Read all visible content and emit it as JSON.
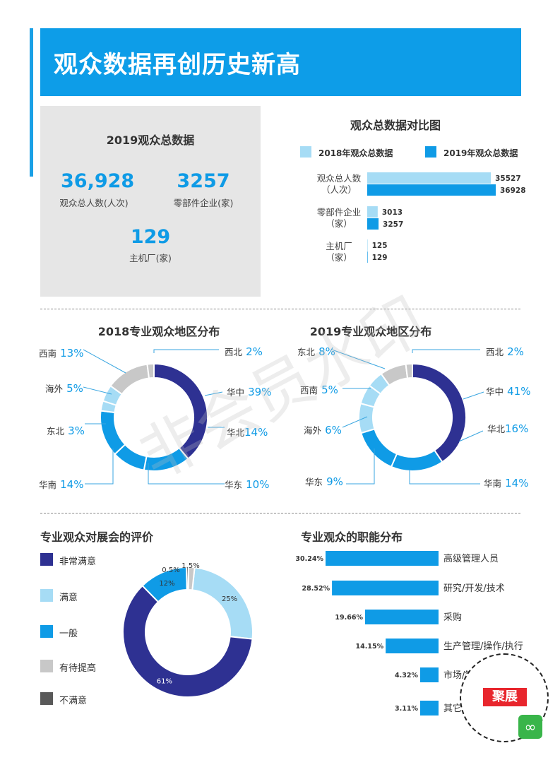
{
  "title": "观众数据再创历史新高",
  "summary": {
    "heading": "2019观众总数据",
    "visitors_value": "36,928",
    "visitors_label": "观众总人数(人次)",
    "suppliers_value": "3257",
    "suppliers_label": "零部件企业(家)",
    "oems_value": "129",
    "oems_label": "主机厂(家)"
  },
  "colors": {
    "accent": "#0d9de8",
    "light_blue": "#a6dcf5",
    "navy": "#2e3192",
    "blue": "#0f9be6",
    "gray": "#c8c8c8",
    "dark_gray": "#595959"
  },
  "comparison": {
    "title": "观众总数据对比图",
    "legend_2018": "2018年观众总数据",
    "legend_2019": "2019年观众总数据",
    "categories": [
      {
        "label_line1": "观众总人数",
        "label_line2": "（人次）"
      },
      {
        "label_line1": "零部件企业",
        "label_line2": "（家）"
      },
      {
        "label_line1": "主机厂",
        "label_line2": "（家）"
      }
    ]
  },
  "region_2018": {
    "title": "2018专业观众地区分布",
    "labels": [
      {
        "name": "西北",
        "pct": "2%"
      },
      {
        "name": "华中",
        "pct": "39%"
      },
      {
        "name": "华北",
        "pct": "14%"
      },
      {
        "name": "华东",
        "pct": "10%"
      },
      {
        "name": "华南",
        "pct": "14%"
      },
      {
        "name": "东北",
        "pct": "3%"
      },
      {
        "name": "海外",
        "pct": "5%"
      },
      {
        "name": "西南",
        "pct": "13%"
      }
    ]
  },
  "region_2019": {
    "title": "2019专业观众地区分布",
    "labels": [
      {
        "name": "西北",
        "pct": "2%"
      },
      {
        "name": "华中",
        "pct": "41%"
      },
      {
        "name": "华北",
        "pct": "16%"
      },
      {
        "name": "华南",
        "pct": "14%"
      },
      {
        "name": "华东",
        "pct": "9%"
      },
      {
        "name": "海外",
        "pct": "6%"
      },
      {
        "name": "西南",
        "pct": "5%"
      },
      {
        "name": "东北",
        "pct": "8%"
      }
    ]
  },
  "evaluation": {
    "title": "专业观众对展会的评价",
    "legend": [
      "非常满意",
      "满意",
      "一般",
      "有待提高",
      "不满意"
    ]
  },
  "functions": {
    "title": "专业观众的职能分布"
  },
  "stamp": {
    "text": "聚展"
  },
  "watermark": "非会员水印",
  "chart_data": [
    {
      "type": "bar",
      "title": "观众总数据对比图",
      "categories": [
        "观众总人数（人次）",
        "零部件企业（家）",
        "主机厂（家）"
      ],
      "series": [
        {
          "name": "2018年观众总数据",
          "values": [
            35527,
            3013,
            125
          ]
        },
        {
          "name": "2019年观众总数据",
          "values": [
            36928,
            3257,
            129
          ]
        }
      ]
    },
    {
      "type": "pie",
      "title": "2018专业观众地区分布",
      "categories": [
        "华中",
        "华北",
        "华东",
        "华南",
        "东北",
        "海外",
        "西南",
        "西北"
      ],
      "values": [
        39,
        14,
        10,
        14,
        3,
        5,
        13,
        2
      ]
    },
    {
      "type": "pie",
      "title": "2019专业观众地区分布",
      "categories": [
        "华中",
        "华北",
        "华南",
        "华东",
        "海外",
        "西南",
        "东北",
        "西北"
      ],
      "values": [
        41,
        16,
        14,
        9,
        6,
        5,
        8,
        2
      ]
    },
    {
      "type": "pie",
      "title": "专业观众对展会的评价",
      "categories": [
        "满意",
        "非常满意",
        "一般",
        "不满意",
        "有待提高"
      ],
      "values": [
        25,
        61,
        12,
        0.5,
        1.5
      ],
      "value_labels": [
        "25%",
        "61%",
        "12%",
        "0.5%",
        "1.5%"
      ]
    },
    {
      "type": "bar",
      "title": "专业观众的职能分布",
      "categories": [
        "高级管理人员",
        "研究/开发/技术",
        "采购",
        "生产管理/操作/执行",
        "市场/销售",
        "其它"
      ],
      "values": [
        30.24,
        28.52,
        19.66,
        14.15,
        4.32,
        3.11
      ],
      "value_labels": [
        "30.24%",
        "28.52%",
        "19.66%",
        "14.15%",
        "4.32%",
        "3.11%"
      ]
    }
  ]
}
